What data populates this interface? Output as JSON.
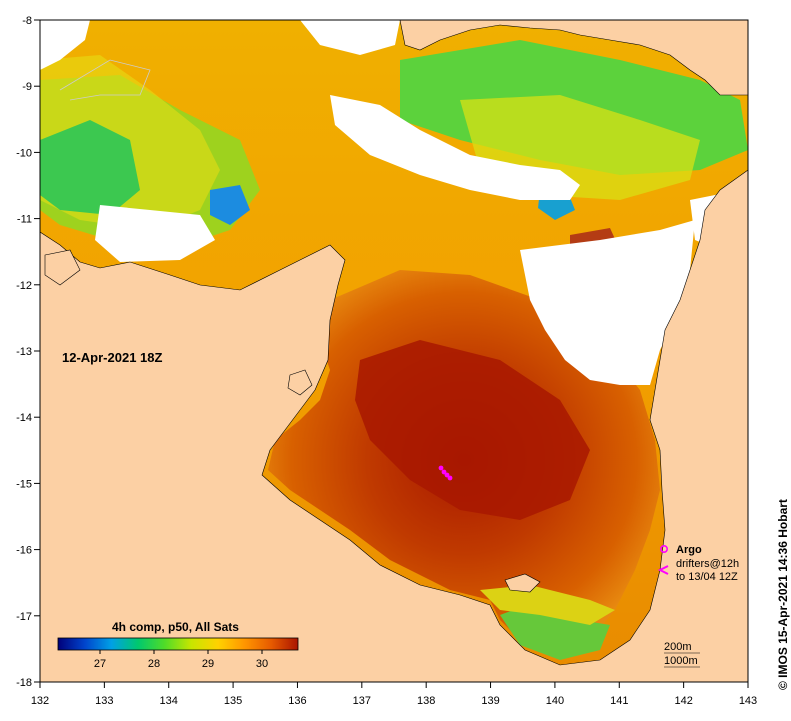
{
  "map": {
    "date_label": "12-Apr-2021 18Z",
    "product_label": "4h comp, p50, All Sats",
    "credit": "© IMOS 15-Apr-2021 14:36 Hobart",
    "lon_ticks": [
      "132",
      "133",
      "134",
      "135",
      "136",
      "137",
      "138",
      "139",
      "140",
      "141",
      "142",
      "143"
    ],
    "lat_ticks": [
      "-8",
      "-9",
      "-10",
      "-11",
      "-12",
      "-13",
      "-14",
      "-15",
      "-16",
      "-17",
      "-18"
    ],
    "colorbar": {
      "ticks": [
        "27",
        "28",
        "29",
        "30"
      ],
      "stops": [
        "#00007a",
        "#0044cc",
        "#00a0e6",
        "#00c86e",
        "#50dc28",
        "#c8e600",
        "#ffd200",
        "#ff9600",
        "#e65a00",
        "#aa1400"
      ]
    },
    "legend": {
      "argo": "Argo",
      "drifters_line1": "drifters@12h",
      "drifters_line2": "to 13/04 12Z",
      "contour_200": "200m",
      "contour_1000": "1000m"
    },
    "colors": {
      "land": "#fcd0a4",
      "cloud": "#ffffff",
      "warm_core": "#a81800",
      "marker": "#ff00ff"
    }
  }
}
